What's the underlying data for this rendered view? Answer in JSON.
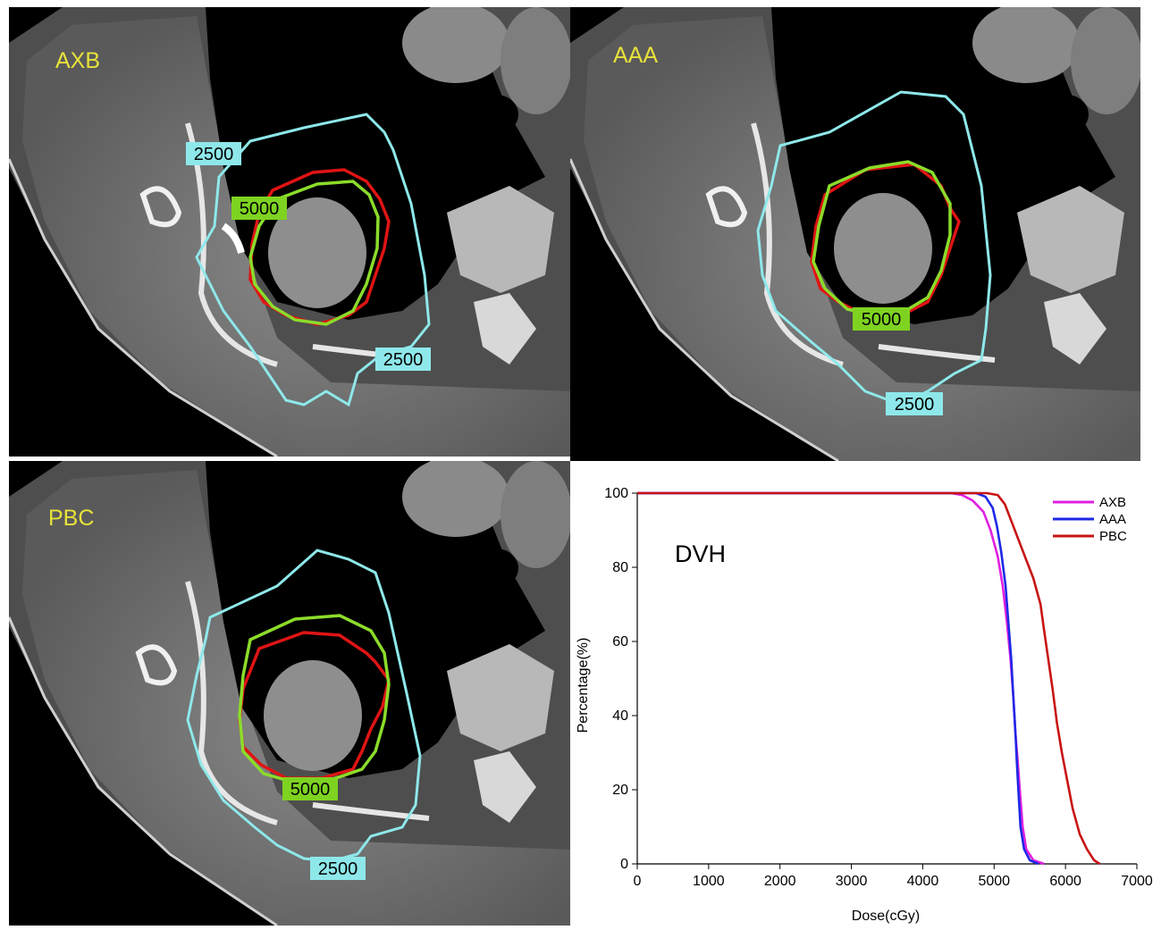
{
  "panels": {
    "axb": {
      "label": "AXB",
      "iso_low": "2500",
      "iso_low_2": "2500",
      "iso_high": "5000"
    },
    "aaa": {
      "label": "AAA",
      "iso_low": "2500",
      "iso_high": "5000"
    },
    "pbc": {
      "label": "PBC",
      "iso_low": "2500",
      "iso_high": "5000"
    }
  },
  "colors": {
    "iso_2500": "#8ee8ea",
    "iso_5000_line": "#8cdc2a",
    "iso_5000_tag": "#7ed321",
    "ptv_red": "#e01414",
    "label_yellow": "#e8e23a"
  },
  "chart_data": {
    "type": "line",
    "title": "DVH",
    "xlabel": "Dose(cGy)",
    "ylabel": "Percentage(%)",
    "xlim": [
      0,
      7000
    ],
    "ylim": [
      0,
      100
    ],
    "xticks": [
      0,
      1000,
      2000,
      3000,
      4000,
      5000,
      6000,
      7000
    ],
    "yticks": [
      0,
      20,
      40,
      60,
      80,
      100
    ],
    "legend_position": "top-right",
    "series": [
      {
        "name": "AXB",
        "color": "#e020e0",
        "points": [
          [
            0,
            100
          ],
          [
            4400,
            100
          ],
          [
            4550,
            99.5
          ],
          [
            4700,
            98
          ],
          [
            4850,
            95
          ],
          [
            4950,
            90
          ],
          [
            5050,
            83
          ],
          [
            5120,
            75
          ],
          [
            5180,
            65
          ],
          [
            5230,
            55
          ],
          [
            5270,
            45
          ],
          [
            5300,
            35
          ],
          [
            5330,
            28
          ],
          [
            5360,
            20
          ],
          [
            5400,
            10
          ],
          [
            5450,
            4
          ],
          [
            5550,
            1
          ],
          [
            5700,
            0
          ]
        ]
      },
      {
        "name": "AAA",
        "color": "#1e28e6",
        "points": [
          [
            0,
            100
          ],
          [
            4750,
            100
          ],
          [
            4880,
            99
          ],
          [
            4980,
            96
          ],
          [
            5040,
            91
          ],
          [
            5100,
            84
          ],
          [
            5160,
            75
          ],
          [
            5200,
            65
          ],
          [
            5240,
            55
          ],
          [
            5270,
            45
          ],
          [
            5300,
            35
          ],
          [
            5320,
            27
          ],
          [
            5340,
            20
          ],
          [
            5370,
            10
          ],
          [
            5420,
            4
          ],
          [
            5500,
            1
          ],
          [
            5620,
            0
          ]
        ]
      },
      {
        "name": "PBC",
        "color": "#c81414",
        "points": [
          [
            0,
            100
          ],
          [
            4900,
            100
          ],
          [
            5050,
            99.5
          ],
          [
            5150,
            97
          ],
          [
            5250,
            92
          ],
          [
            5350,
            87
          ],
          [
            5450,
            82
          ],
          [
            5550,
            77
          ],
          [
            5650,
            70
          ],
          [
            5700,
            63
          ],
          [
            5760,
            55
          ],
          [
            5820,
            47
          ],
          [
            5880,
            38
          ],
          [
            5950,
            30
          ],
          [
            6020,
            23
          ],
          [
            6100,
            15
          ],
          [
            6200,
            8
          ],
          [
            6300,
            4
          ],
          [
            6400,
            1
          ],
          [
            6480,
            0
          ]
        ]
      }
    ]
  }
}
